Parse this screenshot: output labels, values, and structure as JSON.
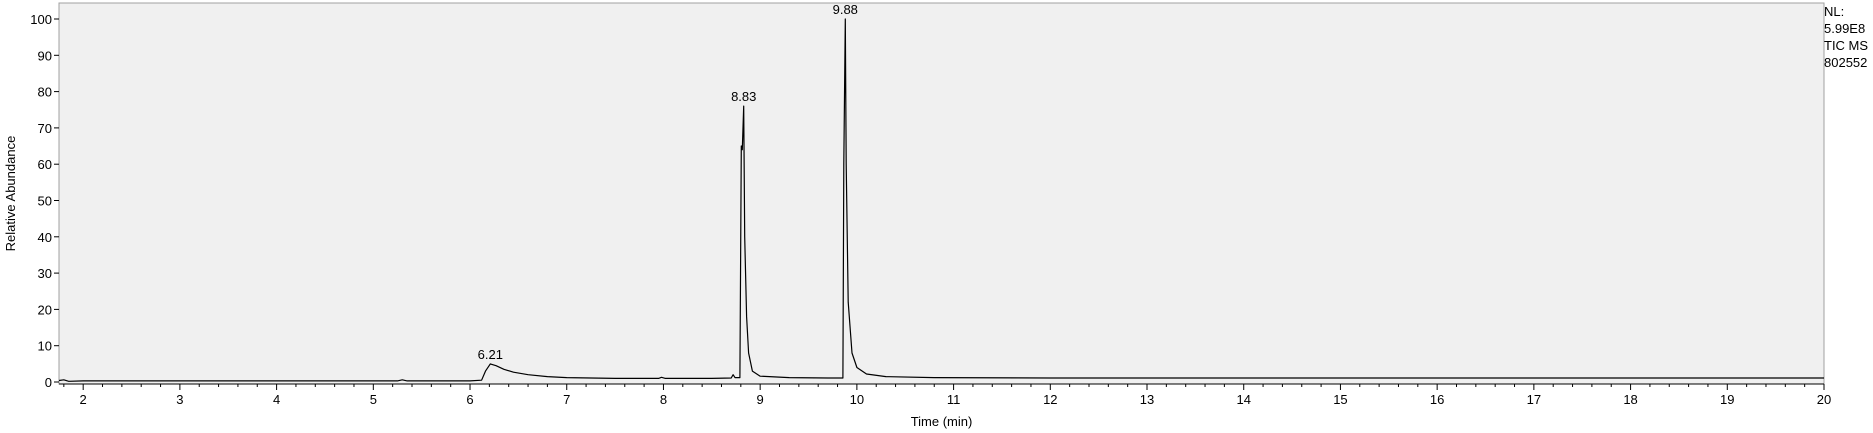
{
  "chart_data": {
    "type": "line",
    "xlabel": "Time (min)",
    "ylabel": "Relative Abundance",
    "xlim": [
      1.75,
      20
    ],
    "ylim": [
      0,
      100
    ],
    "x_ticks": [
      2,
      3,
      4,
      5,
      6,
      7,
      8,
      9,
      10,
      11,
      12,
      13,
      14,
      15,
      16,
      17,
      18,
      19,
      20
    ],
    "y_ticks": [
      0,
      10,
      20,
      30,
      40,
      50,
      60,
      70,
      80,
      90,
      100
    ],
    "grid": false,
    "series": [
      {
        "color": "#000000",
        "points": [
          [
            1.75,
            0.4
          ],
          [
            1.8,
            0.6
          ],
          [
            1.85,
            0.2
          ],
          [
            2.0,
            0.3
          ],
          [
            3.0,
            0.3
          ],
          [
            4.0,
            0.3
          ],
          [
            5.0,
            0.3
          ],
          [
            5.25,
            0.3
          ],
          [
            5.3,
            0.6
          ],
          [
            5.35,
            0.3
          ],
          [
            6.0,
            0.3
          ],
          [
            6.12,
            0.5
          ],
          [
            6.16,
            3.0
          ],
          [
            6.21,
            5.0
          ],
          [
            6.27,
            4.5
          ],
          [
            6.35,
            3.5
          ],
          [
            6.45,
            2.7
          ],
          [
            6.6,
            2.0
          ],
          [
            6.8,
            1.5
          ],
          [
            7.0,
            1.2
          ],
          [
            7.5,
            1.0
          ],
          [
            7.95,
            1.0
          ],
          [
            7.98,
            1.3
          ],
          [
            8.02,
            1.0
          ],
          [
            8.5,
            1.0
          ],
          [
            8.7,
            1.1
          ],
          [
            8.72,
            2.0
          ],
          [
            8.74,
            1.2
          ],
          [
            8.79,
            1.2
          ],
          [
            8.805,
            65.0
          ],
          [
            8.815,
            64.0
          ],
          [
            8.83,
            76.0
          ],
          [
            8.84,
            40.0
          ],
          [
            8.86,
            18.0
          ],
          [
            8.88,
            8.0
          ],
          [
            8.92,
            3.0
          ],
          [
            9.0,
            1.6
          ],
          [
            9.3,
            1.2
          ],
          [
            9.7,
            1.1
          ],
          [
            9.855,
            1.1
          ],
          [
            9.865,
            60.0
          ],
          [
            9.88,
            100.0
          ],
          [
            9.89,
            60.0
          ],
          [
            9.91,
            22.0
          ],
          [
            9.95,
            8.0
          ],
          [
            10.0,
            4.0
          ],
          [
            10.1,
            2.2
          ],
          [
            10.3,
            1.5
          ],
          [
            10.8,
            1.2
          ],
          [
            12.0,
            1.1
          ],
          [
            15.0,
            1.1
          ],
          [
            18.0,
            1.1
          ],
          [
            20.0,
            1.1
          ]
        ]
      }
    ],
    "annotations": [
      {
        "x": 6.21,
        "y": 5.0,
        "text": "6.21"
      },
      {
        "x": 8.83,
        "y": 76.0,
        "text": "8.83"
      },
      {
        "x": 9.88,
        "y": 100.0,
        "text": "9.88"
      }
    ]
  },
  "info": {
    "nl_label": "NL:",
    "nl_value": "5.99E8",
    "scan_filter": "TIC  MS",
    "file_name": "802552"
  }
}
